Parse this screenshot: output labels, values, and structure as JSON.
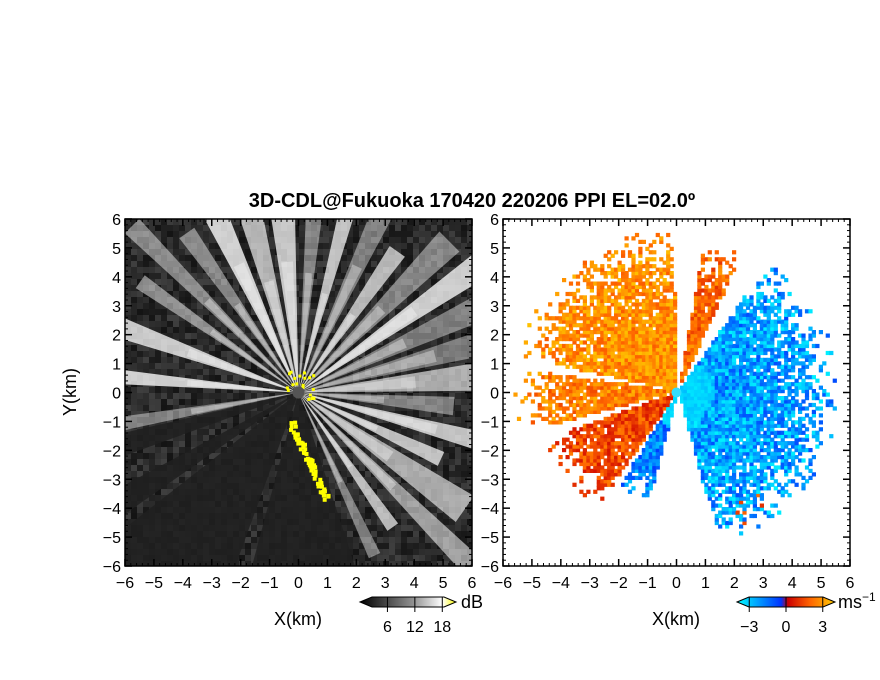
{
  "figure": {
    "title": "3D-CDL@Fukuoka 170420 220206 PPI EL=02.0º"
  },
  "chart_data": [
    {
      "type": "heatmap",
      "panel": "left",
      "quantity": "intensity",
      "xlabel": "X(km)",
      "ylabel": "Y(km)",
      "xlim": [
        -6,
        6
      ],
      "ylim": [
        -6,
        6
      ],
      "xticks": [
        "−6",
        "−5",
        "−4",
        "−3",
        "−2",
        "−1",
        "0",
        "1",
        "2",
        "3",
        "4",
        "5",
        "6"
      ],
      "yticks": [
        "−6",
        "−5",
        "−4",
        "−3",
        "−2",
        "−1",
        "0",
        "1",
        "2",
        "3",
        "4",
        "5",
        "6"
      ],
      "colorbar": {
        "ticks": [
          6,
          12,
          18
        ],
        "tick_labels": [
          "6",
          "12",
          "18"
        ],
        "unit": "dB",
        "range": [
          0,
          21
        ],
        "colors": [
          "#000000",
          "#ffffff",
          "#ffff00"
        ]
      },
      "features": {
        "background": "noise",
        "beams_deg_from_north": [
          -118,
          -110,
          -100,
          -85,
          -70,
          -55,
          -45,
          -35,
          -25,
          -15,
          -5,
          5,
          15,
          25,
          35,
          45,
          55,
          65,
          75,
          85,
          95,
          105,
          115,
          125,
          135,
          145,
          155
        ],
        "shadow_sectors_deg": [
          [
            -125,
            -118
          ],
          [
            -110,
            -103
          ],
          [
            -160,
            -128
          ],
          [
            -198,
            -165
          ]
        ],
        "yellow_returns": "near-field clutter at origin and along the blocked sector edge"
      }
    },
    {
      "type": "heatmap",
      "panel": "right",
      "quantity": "radial velocity",
      "xlabel": "X(km)",
      "ylabel": "",
      "xlim": [
        -6,
        6
      ],
      "ylim": [
        -6,
        6
      ],
      "xticks": [
        "−6",
        "−5",
        "−4",
        "−3",
        "−2",
        "−1",
        "0",
        "1",
        "2",
        "3",
        "4",
        "5",
        "6"
      ],
      "yticks": [
        "−6",
        "−5",
        "−4",
        "−3",
        "−2",
        "−1",
        "0",
        "1",
        "2",
        "3",
        "4",
        "5",
        "6"
      ],
      "colorbar": {
        "ticks": [
          -3,
          0,
          3
        ],
        "tick_labels": [
          "−3",
          "0",
          "3"
        ],
        "unit": "ms",
        "unit_exponent": "−1",
        "range": [
          -4,
          4
        ],
        "colors": [
          "#00ffff",
          "#0033ff",
          "#cc0000",
          "#ff6600",
          "#ffcc00"
        ]
      },
      "features": {
        "background": "none",
        "approaching_side": "east (blue)",
        "receding_side": "north-west and south-west (orange-red)"
      }
    }
  ]
}
